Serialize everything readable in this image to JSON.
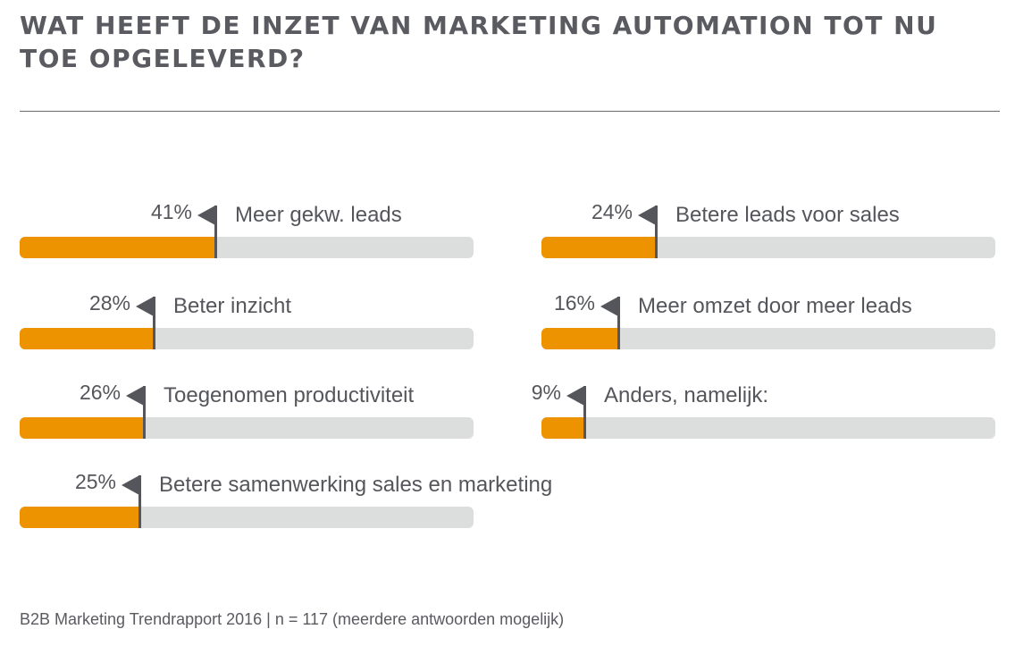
{
  "chart_data": {
    "type": "bar",
    "orientation": "horizontal",
    "title": "WAT HEEFT DE INZET VAN MARKETING AUTOMATION TOT NU TOE OPGELEVERD?",
    "unit": "%",
    "xlim": [
      0,
      95
    ],
    "categories": [
      "Meer gekw. leads",
      "Beter inzicht",
      "Toegenomen productiviteit",
      "Betere samenwerking sales en marketing",
      "Betere leads voor sales",
      "Meer omzet door meer leads",
      "Anders, namelijk:"
    ],
    "values": [
      41,
      28,
      26,
      25,
      24,
      16,
      9
    ],
    "value_labels": [
      "41%",
      "28%",
      "26%",
      "25%",
      "24%",
      "16%",
      "9%"
    ],
    "colors": {
      "fill": "#ee9300",
      "track": "#dcdedd",
      "marker": "#55565b"
    }
  },
  "footer": "B2B Marketing Trendrapport 2016 | n = 117 (meerdere antwoorden mogelijk)"
}
